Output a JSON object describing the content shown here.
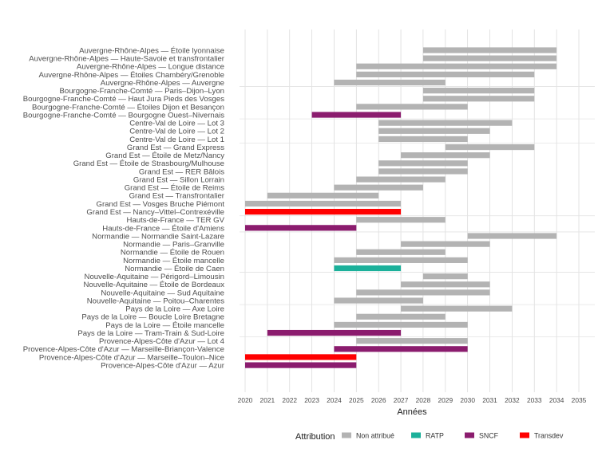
{
  "chart_data": {
    "type": "bar",
    "subtype": "gantt",
    "title": "",
    "xlabel": "Années",
    "ylabel": "",
    "xlim": [
      2020,
      2035
    ],
    "x_ticks": [
      2020,
      2021,
      2022,
      2023,
      2024,
      2025,
      2026,
      2027,
      2028,
      2029,
      2030,
      2031,
      2032,
      2033,
      2034,
      2035
    ],
    "grid": true,
    "legend": {
      "title": "Attribution",
      "placement": "bottom",
      "entries": [
        {
          "name": "Non attribué",
          "color": "#b3b3b3"
        },
        {
          "name": "RATP",
          "color": "#1bb09a"
        },
        {
          "name": "SNCF",
          "color": "#8b1c6e"
        },
        {
          "name": "Transdev",
          "color": "#ff0000"
        }
      ]
    },
    "rows": [
      {
        "label": "Auvergne-Rhône-Alpes — Étoile lyonnaise",
        "region": "Auvergne-Rhône-Alpes",
        "start": 2028,
        "end": 2034,
        "attribution": "Non attribué"
      },
      {
        "label": "Auvergne-Rhône-Alpes — Haute-Savoie et transfrontalier",
        "region": "Auvergne-Rhône-Alpes",
        "start": 2028,
        "end": 2034,
        "attribution": "Non attribué"
      },
      {
        "label": "Auvergne-Rhône-Alpes — Longue distance",
        "region": "Auvergne-Rhône-Alpes",
        "start": 2025,
        "end": 2034,
        "attribution": "Non attribué"
      },
      {
        "label": "Auvergne-Rhône-Alpes — Étoiles Chambéry/Grenoble",
        "region": "Auvergne-Rhône-Alpes",
        "start": 2025,
        "end": 2033,
        "attribution": "Non attribué"
      },
      {
        "label": "Auvergne-Rhône-Alpes — Auvergne",
        "region": "Auvergne-Rhône-Alpes",
        "start": 2024,
        "end": 2029,
        "attribution": "Non attribué"
      },
      {
        "label": "Bourgogne-Franche-Comté — Paris–Dijon–Lyon",
        "region": "Bourgogne-Franche-Comté",
        "start": 2028,
        "end": 2033,
        "attribution": "Non attribué"
      },
      {
        "label": "Bourgogne-Franche-Comté — Haut Jura Pieds des Vosges",
        "region": "Bourgogne-Franche-Comté",
        "start": 2028,
        "end": 2033,
        "attribution": "Non attribué"
      },
      {
        "label": "Bourgogne-Franche-Comté — Étoiles Dijon et Besançon",
        "region": "Bourgogne-Franche-Comté",
        "start": 2025,
        "end": 2030,
        "attribution": "Non attribué"
      },
      {
        "label": "Bourgogne-Franche-Comté — Bourgogne Ouest–Nivernais",
        "region": "Bourgogne-Franche-Comté",
        "start": 2023,
        "end": 2027,
        "attribution": "SNCF"
      },
      {
        "label": "Centre-Val de Loire — Lot 3",
        "region": "Centre-Val de Loire",
        "start": 2026,
        "end": 2032,
        "attribution": "Non attribué"
      },
      {
        "label": "Centre-Val de Loire — Lot 2",
        "region": "Centre-Val de Loire",
        "start": 2026,
        "end": 2031,
        "attribution": "Non attribué"
      },
      {
        "label": "Centre-Val de Loire — Lot 1",
        "region": "Centre-Val de Loire",
        "start": 2026,
        "end": 2030,
        "attribution": "Non attribué"
      },
      {
        "label": "Grand Est — Grand Express",
        "region": "Grand Est",
        "start": 2029,
        "end": 2033,
        "attribution": "Non attribué"
      },
      {
        "label": "Grand Est — Étoile de Metz/Nancy",
        "region": "Grand Est",
        "start": 2027,
        "end": 2031,
        "attribution": "Non attribué"
      },
      {
        "label": "Grand Est — Étoile de Strasbourg/Mulhouse",
        "region": "Grand Est",
        "start": 2026,
        "end": 2030,
        "attribution": "Non attribué"
      },
      {
        "label": "Grand Est — RER Bâlois",
        "region": "Grand Est",
        "start": 2026,
        "end": 2030,
        "attribution": "Non attribué"
      },
      {
        "label": "Grand Est — Sillon Lorrain",
        "region": "Grand Est",
        "start": 2025,
        "end": 2029,
        "attribution": "Non attribué"
      },
      {
        "label": "Grand Est — Étoile de Reims",
        "region": "Grand Est",
        "start": 2024,
        "end": 2028,
        "attribution": "Non attribué"
      },
      {
        "label": "Grand Est — Transfrontalier",
        "region": "Grand Est",
        "start": 2021,
        "end": 2026,
        "attribution": "Non attribué"
      },
      {
        "label": "Grand Est — Vosges Bruche Piémont",
        "region": "Grand Est",
        "start": 2020,
        "end": 2027,
        "attribution": "Non attribué"
      },
      {
        "label": "Grand Est — Nancy–Vittel–Contrexéville",
        "region": "Grand Est",
        "start": 2020,
        "end": 2027,
        "attribution": "Transdev"
      },
      {
        "label": "Hauts-de-France — TER GV",
        "region": "Hauts-de-France",
        "start": 2025,
        "end": 2029,
        "attribution": "Non attribué"
      },
      {
        "label": "Hauts-de-France — Étoile d'Amiens",
        "region": "Hauts-de-France",
        "start": 2020,
        "end": 2025,
        "attribution": "SNCF"
      },
      {
        "label": "Normandie — Normandie Saint-Lazare",
        "region": "Normandie",
        "start": 2030,
        "end": 2034,
        "attribution": "Non attribué"
      },
      {
        "label": "Normandie — Paris–Granville",
        "region": "Normandie",
        "start": 2027,
        "end": 2031,
        "attribution": "Non attribué"
      },
      {
        "label": "Normandie — Étoile de Rouen",
        "region": "Normandie",
        "start": 2025,
        "end": 2029,
        "attribution": "Non attribué"
      },
      {
        "label": "Normandie — Étoile mancelle",
        "region": "Normandie",
        "start": 2024,
        "end": 2030,
        "attribution": "Non attribué"
      },
      {
        "label": "Normandie — Étoile de Caen",
        "region": "Normandie",
        "start": 2024,
        "end": 2027,
        "attribution": "RATP"
      },
      {
        "label": "Nouvelle-Aquitaine — Périgord–Limousin",
        "region": "Nouvelle-Aquitaine",
        "start": 2028,
        "end": 2030,
        "attribution": "Non attribué"
      },
      {
        "label": "Nouvelle-Aquitaine — Étoile de Bordeaux",
        "region": "Nouvelle-Aquitaine",
        "start": 2027,
        "end": 2031,
        "attribution": "Non attribué"
      },
      {
        "label": "Nouvelle-Aquitaine — Sud Aquitaine",
        "region": "Nouvelle-Aquitaine",
        "start": 2025,
        "end": 2031,
        "attribution": "Non attribué"
      },
      {
        "label": "Nouvelle-Aquitaine — Poitou–Charentes",
        "region": "Nouvelle-Aquitaine",
        "start": 2024,
        "end": 2028,
        "attribution": "Non attribué"
      },
      {
        "label": "Pays de la Loire — Axe Loire",
        "region": "Pays de la Loire",
        "start": 2027,
        "end": 2032,
        "attribution": "Non attribué"
      },
      {
        "label": "Pays de la Loire — Boucle Loire Bretagne",
        "region": "Pays de la Loire",
        "start": 2025,
        "end": 2029,
        "attribution": "Non attribué"
      },
      {
        "label": "Pays de la Loire — Étoile mancelle",
        "region": "Pays de la Loire",
        "start": 2024,
        "end": 2030,
        "attribution": "Non attribué"
      },
      {
        "label": "Pays de la Loire — Tram-Train & Sud-Loire",
        "region": "Pays de la Loire",
        "start": 2021,
        "end": 2027,
        "attribution": "SNCF"
      },
      {
        "label": "Provence-Alpes-Côte d'Azur — Lot 4",
        "region": "Provence-Alpes-Côte d'Azur",
        "start": 2025,
        "end": 2030,
        "attribution": "Non attribué"
      },
      {
        "label": "Provence-Alpes-Côte d'Azur — Marseille-Briançon-Valence",
        "region": "Provence-Alpes-Côte d'Azur",
        "start": 2024,
        "end": 2030,
        "attribution": "SNCF"
      },
      {
        "label": "Provence-Alpes-Côte d'Azur — Marseille–Toulon–Nice",
        "region": "Provence-Alpes-Côte d'Azur",
        "start": 2020,
        "end": 2025,
        "attribution": "Transdev"
      },
      {
        "label": "Provence-Alpes-Côte d'Azur — Azur",
        "region": "Provence-Alpes-Côte d'Azur",
        "start": 2020,
        "end": 2025,
        "attribution": "SNCF"
      }
    ]
  }
}
